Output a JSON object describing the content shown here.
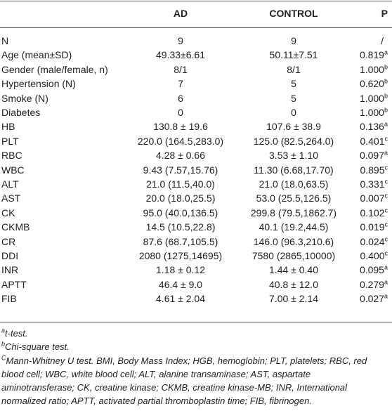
{
  "table": {
    "header": [
      "AD",
      "CONTROL",
      "P"
    ],
    "rows": [
      {
        "label": "N",
        "ad": "9",
        "control": "9",
        "p": "/"
      },
      {
        "label": "Age (mean±SD)",
        "ad": "49.33±6.61",
        "control": "50.11±7.51",
        "p": "0.819",
        "note": "a"
      },
      {
        "label": "Gender (male/female, n)",
        "ad": "8/1",
        "control": "8/1",
        "p": "1.000",
        "note": "b"
      },
      {
        "label": "Hypertension (N)",
        "ad": "7",
        "control": "5",
        "p": "0.620",
        "note": "b"
      },
      {
        "label": "Smoke (N)",
        "ad": "6",
        "control": "5",
        "p": "1.000",
        "note": "b"
      },
      {
        "label": "Diabetes",
        "ad": "0",
        "control": "0",
        "p": "1.000",
        "note": "b"
      },
      {
        "label": "HB",
        "ad": "130.8 ± 19.6",
        "control": "107.6 ± 38.9",
        "p": "0.136",
        "note": "a"
      },
      {
        "label": "PLT",
        "ad": "220.0 (164.5,283.0)",
        "control": "125.0 (82.5,264.0)",
        "p": "0.401",
        "note": "c"
      },
      {
        "label": "RBC",
        "ad": "4.28 ± 0.66",
        "control": "3.53 ± 1.10",
        "p": "0.097",
        "note": "a"
      },
      {
        "label": "WBC",
        "ad": "9.43 (7.57,15.76)",
        "control": "11.30 (6.68,17.70)",
        "p": "0.895",
        "note": "c"
      },
      {
        "label": "ALT",
        "ad": "21.0 (11.5,40.0)",
        "control": "21.0 (18.0,63.5)",
        "p": "0.331",
        "note": "c"
      },
      {
        "label": "AST",
        "ad": "20.0 (18.0,25.5)",
        "control": "53.0 (25.5,126.5)",
        "p": "0.007",
        "note": "c"
      },
      {
        "label": "CK",
        "ad": "95.0 (40.0,136.5)",
        "control": "299.8 (79.5,1862.7)",
        "p": "0.102",
        "note": "c"
      },
      {
        "label": "CKMB",
        "ad": "14.5 (10.5,22.8)",
        "control": "40.1 (19.2,44.5)",
        "p": "0.019",
        "note": "c"
      },
      {
        "label": "CR",
        "ad": "87.6 (68.7,105.5)",
        "control": "146.0 (96.3,210.6)",
        "p": "0.024",
        "note": "c"
      },
      {
        "label": "DDI",
        "ad": "2080 (1275,14695)",
        "control": "7580 (2865,10000)",
        "p": "0.400",
        "note": "c"
      },
      {
        "label": "INR",
        "ad": "1.18 ± 0.12",
        "control": "1.44 ± 0.40",
        "p": "0.095",
        "note": "a"
      },
      {
        "label": "APTT",
        "ad": "46.4 ± 9.0",
        "control": "40.8 ± 12.0",
        "p": "0.279",
        "note": "a"
      },
      {
        "label": "FIB",
        "ad": "4.61 ± 2.04",
        "control": "7.00 ± 2.14",
        "p": "0.027",
        "note": "a"
      }
    ],
    "footnotes": [
      {
        "mark": "a",
        "text": "t-test."
      },
      {
        "mark": "b",
        "text": "Chi-square test."
      },
      {
        "mark": "C",
        "text": "Mann-Whitney U test. BMI, Body Mass Index; HGB, hemoglobin; PLT, platelets; RBC, red blood cell; WBC, white blood cell; ALT, alanine transaminase; AST, aspartate aminotransferase; CK, creatine kinase; CKMB, creatine kinase-MB; INR, International normalized ratio; APTT, activated partial thromboplastin time; FIB, fibrinogen."
      }
    ]
  }
}
